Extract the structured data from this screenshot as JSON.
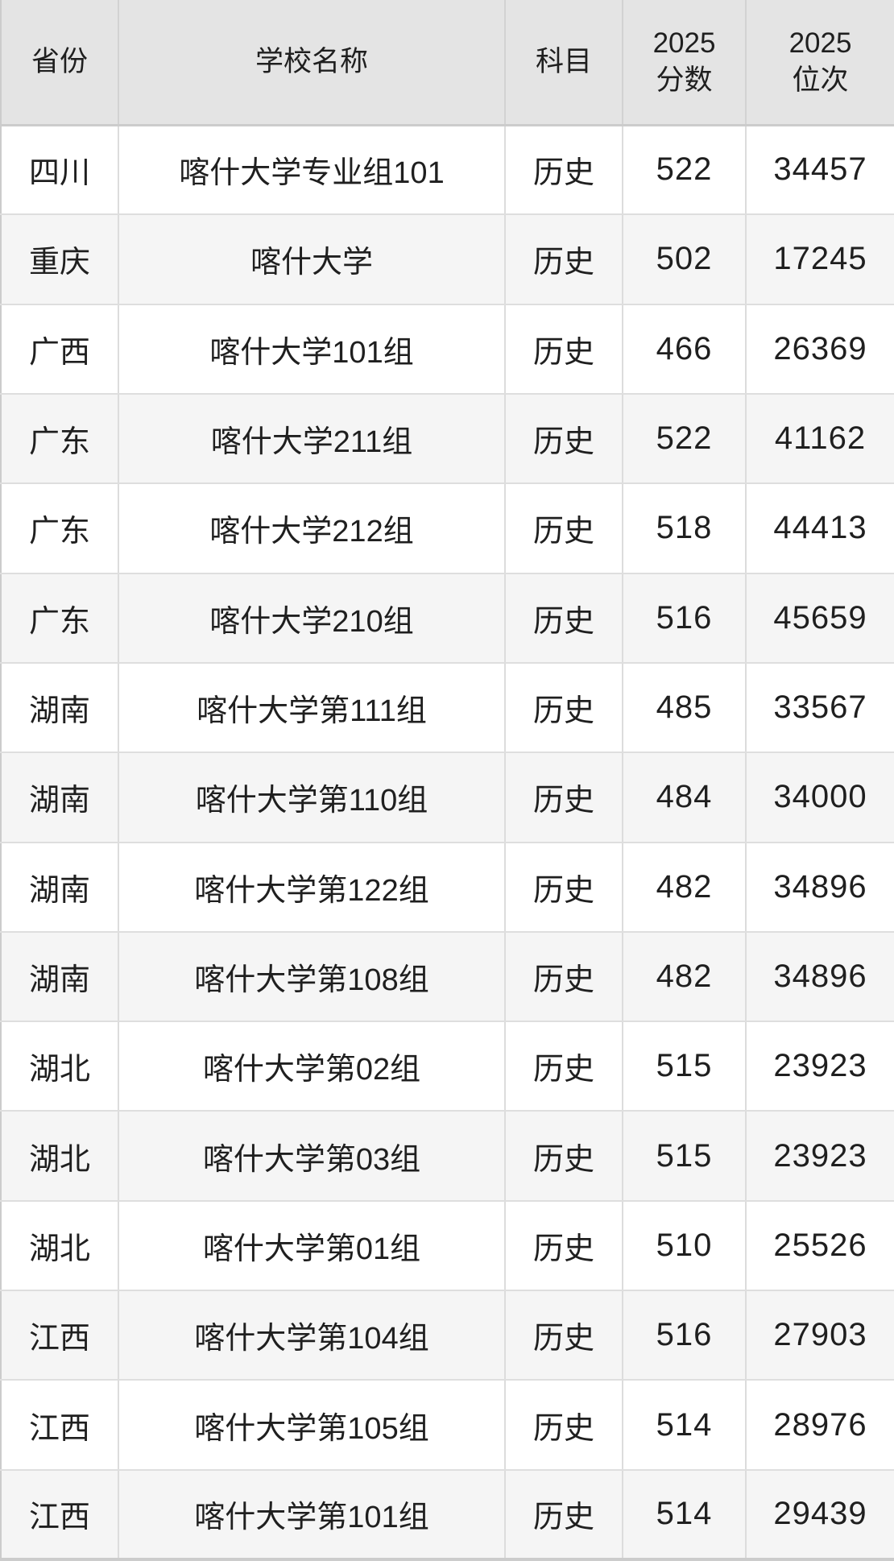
{
  "table": {
    "name": "university-admission-scores",
    "columns": [
      {
        "key": "province",
        "label": "省份"
      },
      {
        "key": "school",
        "label": "学校名称"
      },
      {
        "key": "subject",
        "label": "科目"
      },
      {
        "key": "score",
        "label": "2025\n分数"
      },
      {
        "key": "rank",
        "label": "2025\n位次"
      }
    ],
    "rows": [
      {
        "province": "四川",
        "school": "喀什大学专业组101",
        "subject": "历史",
        "score": "522",
        "rank": "34457"
      },
      {
        "province": "重庆",
        "school": "喀什大学",
        "subject": "历史",
        "score": "502",
        "rank": "17245"
      },
      {
        "province": "广西",
        "school": "喀什大学101组",
        "subject": "历史",
        "score": "466",
        "rank": "26369"
      },
      {
        "province": "广东",
        "school": "喀什大学211组",
        "subject": "历史",
        "score": "522",
        "rank": "41162"
      },
      {
        "province": "广东",
        "school": "喀什大学212组",
        "subject": "历史",
        "score": "518",
        "rank": "44413"
      },
      {
        "province": "广东",
        "school": "喀什大学210组",
        "subject": "历史",
        "score": "516",
        "rank": "45659"
      },
      {
        "province": "湖南",
        "school": "喀什大学第111组",
        "subject": "历史",
        "score": "485",
        "rank": "33567"
      },
      {
        "province": "湖南",
        "school": "喀什大学第110组",
        "subject": "历史",
        "score": "484",
        "rank": "34000"
      },
      {
        "province": "湖南",
        "school": "喀什大学第122组",
        "subject": "历史",
        "score": "482",
        "rank": "34896"
      },
      {
        "province": "湖南",
        "school": "喀什大学第108组",
        "subject": "历史",
        "score": "482",
        "rank": "34896"
      },
      {
        "province": "湖北",
        "school": "喀什大学第02组",
        "subject": "历史",
        "score": "515",
        "rank": "23923"
      },
      {
        "province": "湖北",
        "school": "喀什大学第03组",
        "subject": "历史",
        "score": "515",
        "rank": "23923"
      },
      {
        "province": "湖北",
        "school": "喀什大学第01组",
        "subject": "历史",
        "score": "510",
        "rank": "25526"
      },
      {
        "province": "江西",
        "school": "喀什大学第104组",
        "subject": "历史",
        "score": "516",
        "rank": "27903"
      },
      {
        "province": "江西",
        "school": "喀什大学第105组",
        "subject": "历史",
        "score": "514",
        "rank": "28976"
      },
      {
        "province": "江西",
        "school": "喀什大学第101组",
        "subject": "历史",
        "score": "514",
        "rank": "29439"
      }
    ],
    "colors": {
      "header_bg": "#e4e4e4",
      "row_bg": "#ffffff",
      "row_alt_bg": "#f5f5f5",
      "border": "#dcdcdc",
      "outer_border": "#cccccc",
      "text": "#1f1f1f"
    }
  }
}
